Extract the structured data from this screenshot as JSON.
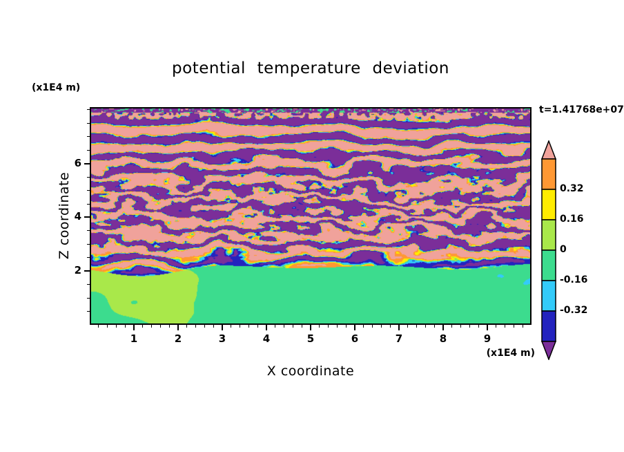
{
  "page": {
    "background": "#FFFFFF"
  },
  "chart_data": {
    "type": "heatmap",
    "title": "potential temperature deviation",
    "time_annotation": "t=1.41768e+07",
    "xlabel": "X coordinate",
    "ylabel": "Z coordinate",
    "x_units_label": "(x1E4 m)",
    "y_units_label": "(x1E4 m)",
    "xlim": [
      0,
      10
    ],
    "ylim": [
      0,
      8.1
    ],
    "x_major_ticks": [
      1,
      2,
      3,
      4,
      5,
      6,
      7,
      8,
      9
    ],
    "x_minor_tick_step": 0.2,
    "y_major_ticks": [
      2,
      4,
      6
    ],
    "y_minor_tick_step": 0.5,
    "grid": false,
    "colorbar": {
      "position": "right",
      "boundary_labels": [
        "0.32",
        "0.16",
        "0",
        "-0.16",
        "-0.32"
      ],
      "boundary_values": [
        0.32,
        0.16,
        0,
        -0.16,
        -0.32
      ],
      "level_edges": [
        0.48,
        0.32,
        0.16,
        0,
        -0.16,
        -0.32,
        -0.48
      ],
      "over_color": "#F0A29B",
      "band_colors_top_to_bottom": [
        "#FF9833",
        "#FFEC00",
        "#A9E84A",
        "#3CDC8E",
        "#33CBFA",
        "#2323BE"
      ],
      "under_color": "#7B2E99"
    },
    "field": {
      "description": "Filled-contour field of potential temperature deviation: horizontally stratified wave layers above z≈2 alternating between strong positive (salmon, above top level) and strong negative (purple, below bottom level) bands separated by thin orange/yellow/green/cyan/navy filaments; chaotic overturning filaments around z≈3-5.5; near-zero well-mixed layer below z≈2 shown as green with weak positive chartreuse patches.",
      "mixed_layer_top_z": 2.0,
      "value_scale_saturates_beyond": 0.48
    }
  }
}
